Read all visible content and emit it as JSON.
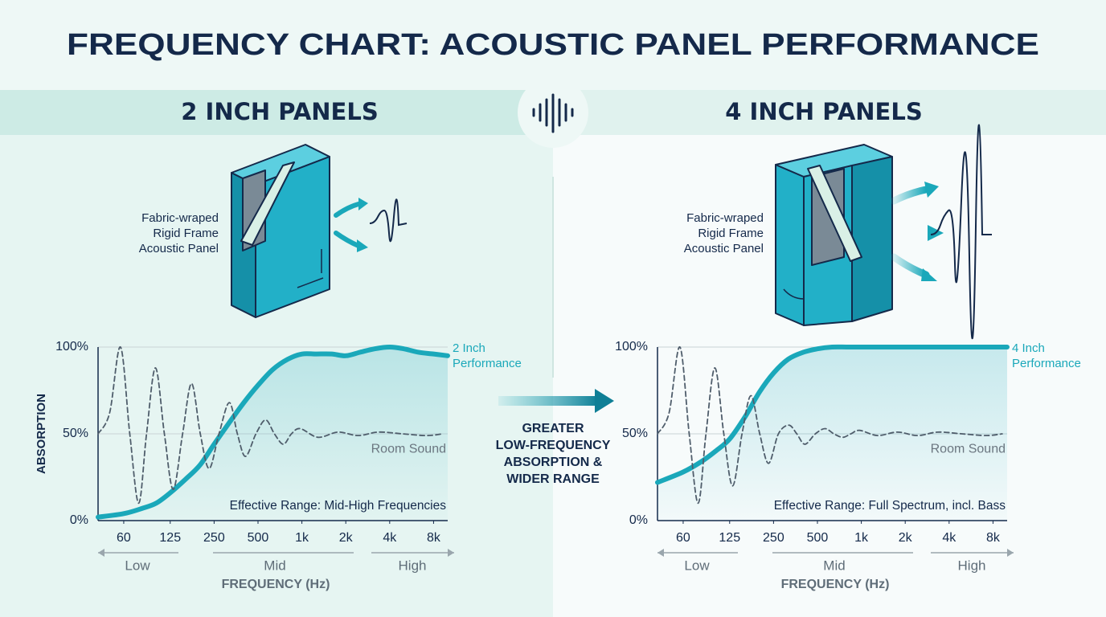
{
  "title": "FREQUENCY CHART: ACOUSTIC PANEL PERFORMANCE",
  "center_annotation": [
    "GREATER",
    "LOW-FREQUENCY",
    "ABSORPTION &",
    "WIDER RANGE"
  ],
  "chart_data": [
    {
      "type": "line",
      "heading": "2 INCH PANELS",
      "panel_label": [
        "Fabric-wraped",
        "Rigid Frame",
        "Acoustic Panel"
      ],
      "y_label": "ABSORPTION",
      "x_label": "FREQUENCY (Hz)",
      "annotation": "Effective Range: Mid-High Frequencies",
      "x_scale": "log",
      "xlim": [
        40,
        10000
      ],
      "xticks": [
        60,
        125,
        250,
        500,
        {
          "value": 1000,
          "label": "1k"
        },
        {
          "value": 2000,
          "label": "2k"
        },
        {
          "value": 4000,
          "label": "4k"
        },
        {
          "value": 8000,
          "label": "8k"
        }
      ],
      "ylim": [
        0,
        100
      ],
      "yticks": [
        {
          "value": 0,
          "label": "0%"
        },
        {
          "value": 50,
          "label": "50%"
        },
        {
          "value": 100,
          "label": "100%"
        }
      ],
      "grid": true,
      "ranges": [
        "Low",
        "Mid",
        "High"
      ],
      "series": [
        {
          "name": "2 Inch Performance",
          "color": "#1aa8ba",
          "style": "solid",
          "x": [
            40,
            60,
            80,
            100,
            125,
            160,
            200,
            250,
            315,
            400,
            500,
            630,
            800,
            1000,
            1250,
            1600,
            2000,
            2500,
            3150,
            4000,
            5000,
            6300,
            8000,
            10000
          ],
          "values": [
            2,
            4,
            7,
            10,
            16,
            24,
            32,
            44,
            56,
            68,
            78,
            87,
            93,
            96,
            96,
            96,
            95,
            97,
            99,
            100,
            99,
            97,
            96,
            95
          ]
        },
        {
          "name": "Room Sound",
          "color": "#4f5d6b",
          "style": "dashed",
          "x": [
            40,
            48,
            57,
            66,
            76,
            86,
            99,
            114,
            131,
            152,
            175,
            201,
            231,
            270,
            318,
            361,
            410,
            484,
            564,
            648,
            746,
            848,
            975,
            1290,
            1770,
            2430,
            3350,
            4900,
            7170,
            9250
          ],
          "values": [
            50,
            62,
            100,
            50,
            10,
            50,
            88,
            50,
            18,
            50,
            79,
            50,
            30,
            50,
            68,
            50,
            37,
            50,
            58,
            50,
            44,
            50,
            53,
            48,
            51,
            49,
            51,
            50,
            49,
            50
          ]
        }
      ]
    },
    {
      "type": "line",
      "heading": "4 INCH PANELS",
      "panel_label": [
        "Fabric-wraped",
        "Rigid Frame",
        "Acoustic Panel"
      ],
      "x_label": "FREQUENCY (Hz)",
      "annotation": "Effective Range: Full Spectrum, incl. Bass",
      "x_scale": "log",
      "xlim": [
        40,
        10000
      ],
      "xticks": [
        60,
        125,
        250,
        500,
        {
          "value": 1000,
          "label": "1k"
        },
        {
          "value": 2000,
          "label": "2k"
        },
        {
          "value": 4000,
          "label": "4k"
        },
        {
          "value": 8000,
          "label": "8k"
        }
      ],
      "ylim": [
        0,
        100
      ],
      "yticks": [
        {
          "value": 0,
          "label": "0%"
        },
        {
          "value": 50,
          "label": "50%"
        },
        {
          "value": 100,
          "label": "100%"
        }
      ],
      "grid": true,
      "ranges": [
        "Low",
        "Mid",
        "High"
      ],
      "series": [
        {
          "name": "4 Inch Performance",
          "color": "#1aa8ba",
          "style": "solid",
          "x": [
            40,
            60,
            80,
            100,
            125,
            160,
            200,
            250,
            315,
            400,
            500,
            630,
            800,
            1000,
            1250,
            1600,
            2000,
            2500,
            3150,
            4000,
            5000,
            6300,
            8000,
            10000
          ],
          "values": [
            22,
            28,
            34,
            40,
            47,
            60,
            74,
            85,
            93,
            97,
            99,
            100,
            100,
            100,
            100,
            100,
            100,
            100,
            100,
            100,
            100,
            100,
            100,
            100
          ]
        },
        {
          "name": "Room Sound",
          "color": "#4f5d6b",
          "style": "dashed",
          "x": [
            40,
            48,
            57,
            66,
            76,
            86,
            99,
            114,
            131,
            152,
            175,
            201,
            231,
            270,
            318,
            361,
            410,
            484,
            564,
            648,
            746,
            848,
            975,
            1290,
            1770,
            2430,
            3350,
            4900,
            7170,
            9250
          ],
          "values": [
            50,
            62,
            100,
            50,
            10,
            50,
            88,
            50,
            20,
            50,
            72,
            50,
            33,
            50,
            55,
            50,
            44,
            50,
            53,
            50,
            48,
            50,
            52,
            49,
            51,
            49,
            51,
            50,
            49,
            50
          ]
        }
      ]
    }
  ]
}
